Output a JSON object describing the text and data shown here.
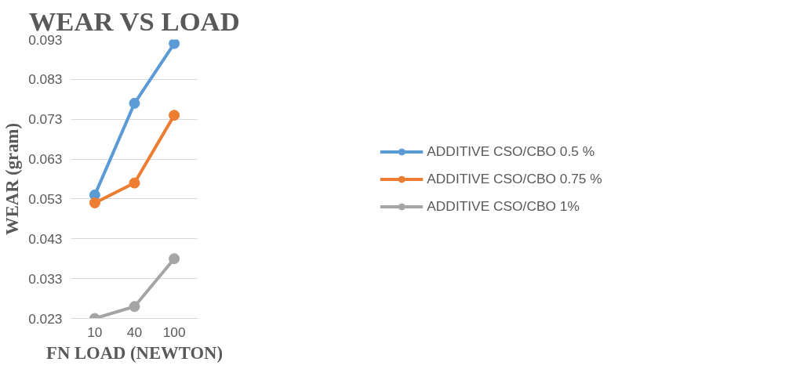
{
  "chart_data": {
    "type": "line",
    "title": "WEAR VS LOAD",
    "xlabel": "FN LOAD (NEWTON)",
    "ylabel": "WEAR (gram)",
    "categories": [
      "10",
      "40",
      "100"
    ],
    "series": [
      {
        "name": "ADDITIVE CSO/CBO 0.5 %",
        "color": "#5b9bd5",
        "values": [
          0.054,
          0.077,
          0.092
        ]
      },
      {
        "name": "ADDITIVE CSO/CBO 0.75 %",
        "color": "#ed7d31",
        "values": [
          0.052,
          0.057,
          0.074
        ]
      },
      {
        "name": "ADDITIVE CSO/CBO 1%",
        "color": "#a5a5a5",
        "values": [
          0.023,
          0.026,
          0.038
        ]
      }
    ],
    "ylim": [
      0.023,
      0.093
    ],
    "yticks": [
      0.023,
      0.033,
      0.043,
      0.053,
      0.063,
      0.073,
      0.083,
      0.093
    ],
    "grid": "y",
    "legend": "right",
    "marker": "circle",
    "line_style": "solid"
  }
}
